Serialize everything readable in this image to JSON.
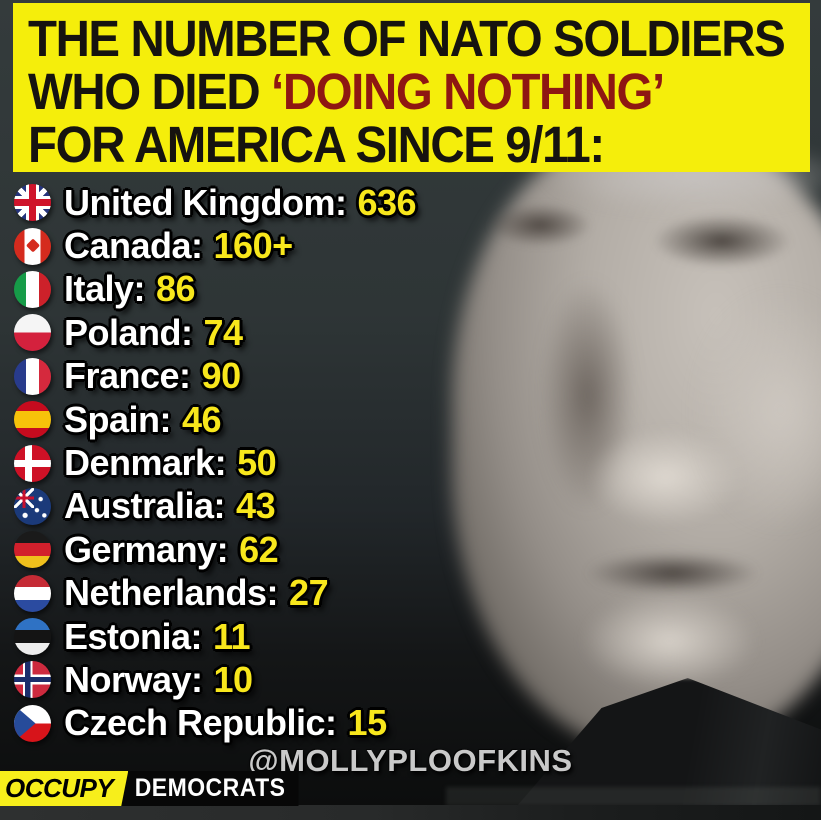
{
  "header": {
    "line1": "THE NUMBER OF NATO SOLDIERS",
    "line2_prefix": "WHO DIED ",
    "line2_highlight": "‘DOING NOTHING’",
    "line3": "FOR AMERICA SINCE 9/11:"
  },
  "countries": [
    {
      "name": "United Kingdom",
      "value": "636",
      "flag": "uk"
    },
    {
      "name": "Canada",
      "value": "160+",
      "flag": "canada"
    },
    {
      "name": "Italy",
      "value": "86",
      "flag": "italy"
    },
    {
      "name": "Poland",
      "value": "74",
      "flag": "poland"
    },
    {
      "name": "France",
      "value": "90",
      "flag": "france"
    },
    {
      "name": "Spain",
      "value": "46",
      "flag": "spain"
    },
    {
      "name": "Denmark",
      "value": "50",
      "flag": "denmark"
    },
    {
      "name": "Australia",
      "value": "43",
      "flag": "australia"
    },
    {
      "name": "Germany",
      "value": "62",
      "flag": "germany"
    },
    {
      "name": "Netherlands",
      "value": "27",
      "flag": "netherlands"
    },
    {
      "name": "Estonia",
      "value": "11",
      "flag": "estonia"
    },
    {
      "name": "Norway",
      "value": "10",
      "flag": "norway"
    },
    {
      "name": "Czech Republic",
      "value": "15",
      "flag": "czech"
    }
  ],
  "attribution": "@MOLLYPLOOFKINS",
  "logo": {
    "part1": "OCCUPY",
    "part2": "DEMOCRATS"
  },
  "colors": {
    "header_bg": "#f5ee0b",
    "headline_text": "#16130f",
    "headline_highlight": "#8e1712",
    "value_text": "#f8e71c",
    "country_text": "#ffffff",
    "logo_yellow": "#f7ee1b",
    "attribution_text": "#c9c9c9",
    "photo_background": "#2e3536"
  }
}
